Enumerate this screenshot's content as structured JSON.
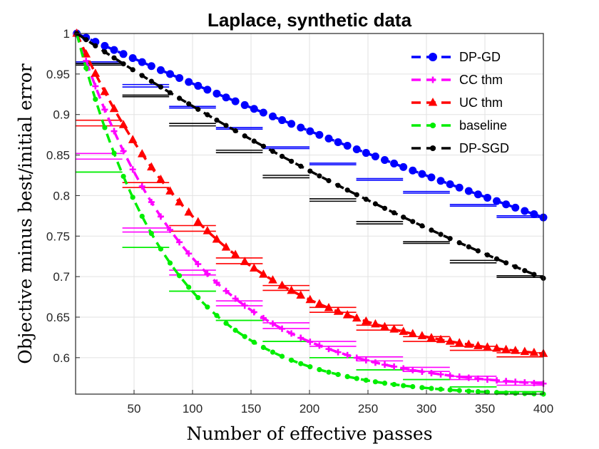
{
  "chart_data": {
    "type": "line",
    "title": "Laplace, synthetic data",
    "xlabel": "Number of effective passes",
    "ylabel": "Objective minus best/initial error",
    "xlim": [
      0,
      400
    ],
    "ylim": [
      0.555,
      1.0
    ],
    "xticks": [
      50,
      100,
      150,
      200,
      250,
      300,
      350,
      400
    ],
    "xtick_labels": [
      "50",
      "100",
      "150",
      "200",
      "250",
      "300",
      "350",
      "400"
    ],
    "yticks": [
      0.6,
      0.65,
      0.7,
      0.75,
      0.8,
      0.85,
      0.9,
      0.95,
      1.0
    ],
    "ytick_labels": [
      "0.6",
      "0.65",
      "0.7",
      "0.75",
      "0.8",
      "0.85",
      "0.9",
      "0.95",
      "1"
    ],
    "grid": true,
    "legend_position": "top-right",
    "series": [
      {
        "name": "DP-GD",
        "color": "#0000ff",
        "marker": "circle",
        "start": [
          1,
          1.0
        ],
        "end": [
          400,
          0.773
        ],
        "curve": 0.25,
        "markers": 50,
        "segments": [
          [
            0.965,
            0.963
          ],
          [
            0.937,
            0.934
          ],
          [
            0.91,
            0.908
          ],
          [
            0.884,
            0.882
          ],
          [
            0.86,
            0.858
          ],
          [
            0.84,
            0.838
          ],
          [
            0.821,
            0.819
          ],
          [
            0.805,
            0.803
          ],
          [
            0.789,
            0.787
          ],
          [
            0.775,
            0.773
          ]
        ]
      },
      {
        "name": "CC thm",
        "color": "#ff00ff",
        "marker": "plus",
        "start": [
          1,
          1.0
        ],
        "end": [
          400,
          0.568
        ],
        "curve": 4.0,
        "markers": 50,
        "segments": [
          [
            0.852,
            0.845
          ],
          [
            0.76,
            0.755
          ],
          [
            0.708,
            0.702
          ],
          [
            0.67,
            0.664
          ],
          [
            0.643,
            0.636
          ],
          [
            0.62,
            0.614
          ],
          [
            0.601,
            0.596
          ],
          [
            0.588,
            0.583
          ],
          [
            0.577,
            0.573
          ],
          [
            0.57,
            0.566
          ]
        ]
      },
      {
        "name": "UC thm",
        "color": "#ff0000",
        "marker": "triangle",
        "start": [
          1,
          1.0
        ],
        "end": [
          400,
          0.605
        ],
        "curve": 3.2,
        "markers": 50,
        "segments": [
          [
            0.893,
            0.886
          ],
          [
            0.816,
            0.81
          ],
          [
            0.763,
            0.756
          ],
          [
            0.723,
            0.716
          ],
          [
            0.689,
            0.683
          ],
          [
            0.662,
            0.656
          ],
          [
            0.64,
            0.634
          ],
          [
            0.626,
            0.62
          ],
          [
            0.614,
            0.609
          ],
          [
            0.606,
            0.601
          ]
        ]
      },
      {
        "name": "baseline",
        "color": "#00ee00",
        "marker": "dot",
        "start": [
          1,
          1.0
        ],
        "end": [
          400,
          0.555
        ],
        "curve": 5.0,
        "markers": 50,
        "segments": [
          [
            0.829,
            0.829
          ],
          [
            0.736,
            0.736
          ],
          [
            0.682,
            0.682
          ],
          [
            0.646,
            0.646
          ],
          [
            0.62,
            0.62
          ],
          [
            0.6,
            0.6
          ],
          [
            0.585,
            0.585
          ],
          [
            0.573,
            0.573
          ],
          [
            0.564,
            0.564
          ],
          [
            0.558,
            0.558
          ]
        ]
      },
      {
        "name": "DP-SGD",
        "color": "#000000",
        "marker": "dot",
        "start": [
          1,
          1.0
        ],
        "end": [
          400,
          0.698
        ],
        "curve": 0.5,
        "markers": 50,
        "segments": [
          [
            0.963,
            0.961
          ],
          [
            0.924,
            0.922
          ],
          [
            0.889,
            0.886
          ],
          [
            0.856,
            0.853
          ],
          [
            0.825,
            0.822
          ],
          [
            0.796,
            0.793
          ],
          [
            0.768,
            0.765
          ],
          [
            0.743,
            0.741
          ],
          [
            0.72,
            0.717
          ],
          [
            0.701,
            0.699
          ]
        ]
      }
    ]
  }
}
